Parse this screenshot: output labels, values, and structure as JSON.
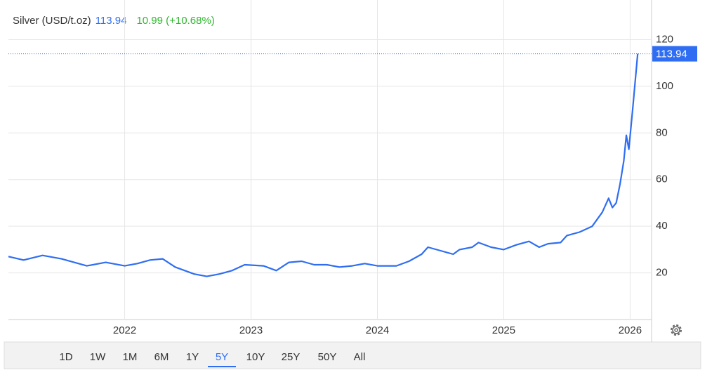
{
  "chart_data": {
    "type": "line",
    "title": "Silver (USD/t.oz)",
    "change": "10.99 (+10.68%)",
    "color": "#2f6ef2",
    "change_color": "#2eb82e",
    "grid": true,
    "x": [
      2021.08,
      2021.2,
      2021.35,
      2021.5,
      2021.7,
      2021.85,
      2022.0,
      2022.1,
      2022.2,
      2022.3,
      2022.4,
      2022.55,
      2022.65,
      2022.75,
      2022.85,
      2022.95,
      2023.1,
      2023.2,
      2023.3,
      2023.4,
      2023.5,
      2023.6,
      2023.7,
      2023.8,
      2023.9,
      2024.0,
      2024.15,
      2024.25,
      2024.35,
      2024.4,
      2024.5,
      2024.6,
      2024.65,
      2024.75,
      2024.8,
      2024.9,
      2025.0,
      2025.1,
      2025.2,
      2025.28,
      2025.35,
      2025.45,
      2025.5,
      2025.6,
      2025.7,
      2025.78,
      2025.83,
      2025.86,
      2025.89,
      2025.92,
      2025.95,
      2025.97,
      2025.99,
      2026.02,
      2026.06
    ],
    "values": [
      27,
      25.5,
      27.5,
      26,
      23,
      24.5,
      23,
      24,
      25.5,
      26,
      22.5,
      19.5,
      18.5,
      19.5,
      21,
      23.5,
      23,
      21,
      24.5,
      25,
      23.5,
      23.5,
      22.5,
      23,
      24,
      23,
      23,
      25,
      28,
      31,
      29.5,
      28,
      30,
      31,
      33,
      31,
      30,
      32,
      33.5,
      31,
      32.5,
      33,
      36,
      37.5,
      40,
      46,
      52,
      48,
      50,
      58,
      68,
      79,
      73,
      90,
      113.94
    ],
    "xlim": [
      2021.08,
      2026.17
    ],
    "xticks": [
      2022,
      2023,
      2024,
      2025,
      2026
    ],
    "ylim": [
      0,
      137
    ],
    "yticks": [
      20,
      40,
      60,
      80,
      100,
      120
    ],
    "ranges": [
      "1D",
      "1W",
      "1M",
      "6M",
      "1Y",
      "5Y",
      "10Y",
      "25Y",
      "50Y",
      "All"
    ],
    "selected_range": "5Y"
  }
}
